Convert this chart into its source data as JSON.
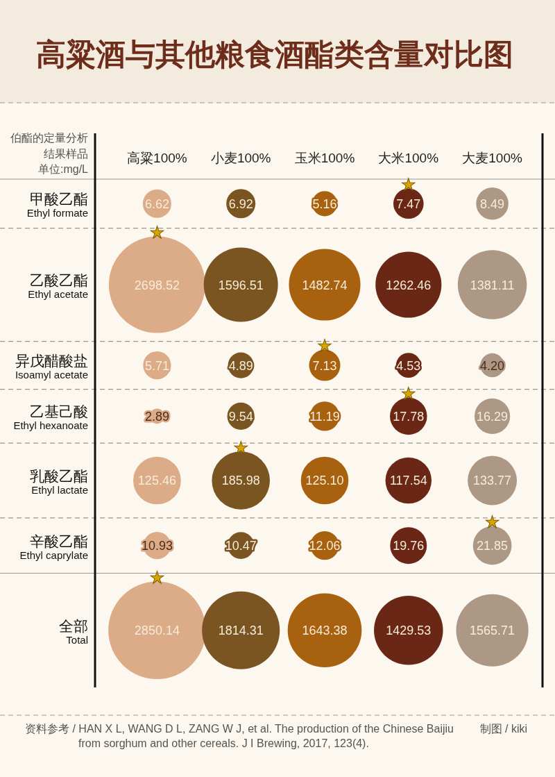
{
  "chart_data": {
    "type": "other",
    "title": "高粱酒与其他粮食酒酯类含量对比图",
    "ylabel": "伯酯的定量分析结果样品",
    "categories": [
      "甲酸乙酯",
      "乙酸乙酯",
      "异戊醋酸盐",
      "乙基己酸",
      "乳酸乙酯",
      "辛酸乙酯",
      "全部"
    ],
    "y2_categories": [
      "Ethyl formate",
      "Ethyl acetate",
      "Isoamyl acetate",
      "Ethyl hexanoate",
      "Ethyl lactate",
      "Ethyl caprylate",
      "Total"
    ],
    "series": [
      {
        "name": "高粱100%",
        "color": "#dcab88",
        "values": [
          6.62,
          2698.52,
          5.71,
          2.89,
          125.46,
          10.93,
          2850.14
        ],
        "value_labels": [
          "6.62",
          "2698.52",
          "5.71",
          "2.89",
          "125.46",
          "10.93",
          "2850.14"
        ]
      },
      {
        "name": "小麦100%",
        "color": "#7a5522",
        "values": [
          6.92,
          1596.51,
          4.89,
          9.54,
          185.98,
          10.47,
          1814.31
        ],
        "value_labels": [
          "6.92",
          "1596.51",
          "4.89",
          "9.54",
          "185.98",
          "10.47",
          "1814.31"
        ]
      },
      {
        "name": "玉米100%",
        "color": "#a8620f",
        "values": [
          5.16,
          1482.74,
          7.13,
          11.19,
          125.1,
          12.06,
          1643.38
        ],
        "value_labels": [
          "5.16",
          "1482.74",
          "7.13",
          "11.19",
          "125.10",
          "12.06",
          "1643.38"
        ]
      },
      {
        "name": "大米100%",
        "color": "#6b2716",
        "values": [
          7.47,
          1262.46,
          4.53,
          17.78,
          117.54,
          19.76,
          1429.53
        ],
        "value_labels": [
          "7.47",
          "1262.46",
          "4.53",
          "17.78",
          "117.54",
          "19.76",
          "1429.53"
        ]
      },
      {
        "name": "大麦100%",
        "color": "#ad9885",
        "values": [
          8.49,
          1381.11,
          4.2,
          16.29,
          133.77,
          21.85,
          1565.71
        ],
        "value_labels": [
          "8.49",
          "1381.11",
          "4.20",
          "16.29",
          "133.77",
          "21.85",
          "1565.71"
        ]
      }
    ],
    "annotations": [
      {
        "text": "★",
        "x": "大米100%",
        "y": "甲酸乙酯"
      },
      {
        "text": "★",
        "x": "高粱100%",
        "y": "乙酸乙酯"
      },
      {
        "text": "★",
        "x": "玉米100%",
        "y": "异戊醋酸盐"
      },
      {
        "text": "★",
        "x": "大米100%",
        "y": "乙基己酸"
      },
      {
        "text": "★",
        "x": "小麦100%",
        "y": "乳酸乙酯"
      },
      {
        "text": "★",
        "x": "大麦100%",
        "y": "辛酸乙酯"
      },
      {
        "text": "★",
        "x": "高粱100%",
        "y": "全部"
      },
      "单位:mg/L",
      "资料参考 / HAN X L, WANG D L, ZANG W J, et al. The production of the Chinese Baijiu from sorghum and other cereals. J I Brewing, 2017, 123(4).",
      "制图 / kiki"
    ]
  }
}
